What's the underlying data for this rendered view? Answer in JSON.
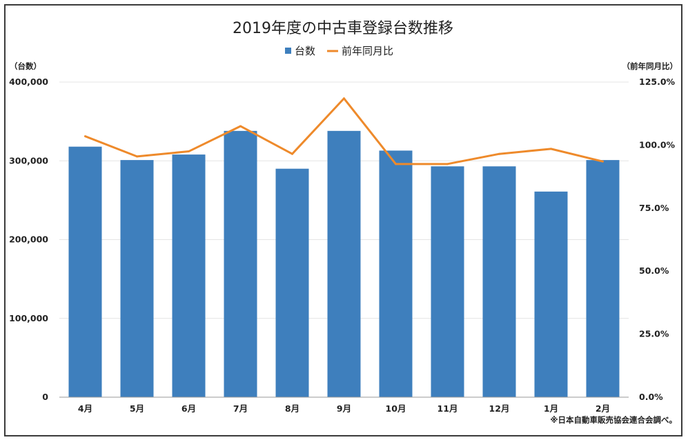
{
  "chart_data": {
    "type": "bar",
    "title": "2019年度の中古車登録台数推移",
    "y_left_unit": "（台数）",
    "y_right_unit": "（前年同月比）",
    "source_note": "※日本自動車販売協会連合会調べ。",
    "categories": [
      "4月",
      "5月",
      "6月",
      "7月",
      "8月",
      "9月",
      "10月",
      "11月",
      "12月",
      "1月",
      "2月"
    ],
    "series": [
      {
        "name": "台数",
        "type": "bar",
        "axis": "left",
        "color": "#3e7fbd",
        "values": [
          318000,
          301000,
          308000,
          338000,
          290000,
          338000,
          313000,
          293000,
          293000,
          261000,
          301000
        ]
      },
      {
        "name": "前年同月比",
        "type": "line",
        "axis": "right",
        "color": "#ee8a2b",
        "values": [
          103.5,
          95.5,
          97.5,
          107.5,
          96.5,
          118.5,
          92.5,
          92.5,
          96.5,
          98.5,
          93.5
        ]
      }
    ],
    "y_left": {
      "ticks": [
        "0",
        "100,000",
        "200,000",
        "300,000",
        "400,000"
      ],
      "range": [
        0,
        400000
      ]
    },
    "y_right": {
      "ticks": [
        "0.0%",
        "25.0%",
        "50.0%",
        "75.0%",
        "100.0%",
        "125.0%"
      ],
      "range": [
        0,
        125
      ]
    },
    "grid": true,
    "legend_position": "top"
  }
}
